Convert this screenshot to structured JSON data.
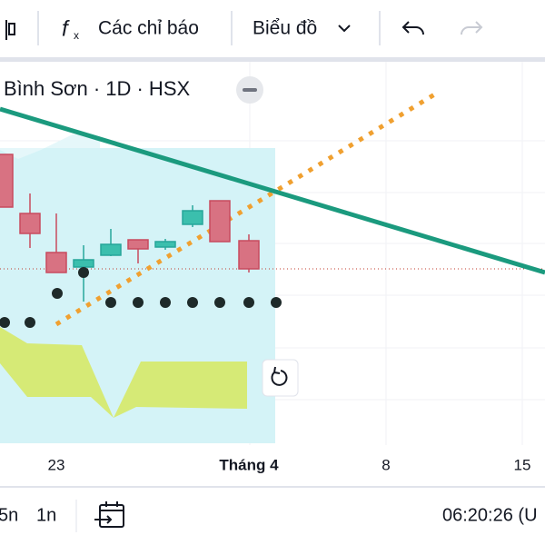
{
  "toolbar": {
    "indicators": "Các chỉ báo",
    "chart_type": "Biểu đồ"
  },
  "chart": {
    "title": "Bình Sơn · 1D · HSX",
    "x_labels": [
      "23",
      "Tháng 4",
      "8",
      "15"
    ]
  },
  "bottom_bar": {
    "ranges": [
      "5n",
      "1n"
    ],
    "clock": "06:20:26 (U"
  }
}
